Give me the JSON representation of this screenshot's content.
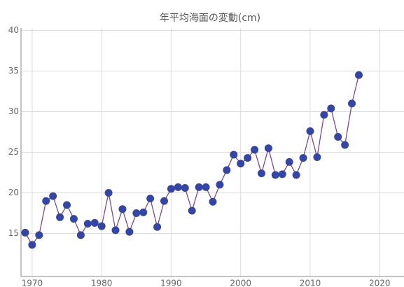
{
  "chart_data": {
    "type": "line",
    "title": "年平均海面の変動(cm)",
    "x": [
      1969,
      1970,
      1971,
      1972,
      1973,
      1974,
      1975,
      1976,
      1977,
      1978,
      1979,
      1980,
      1981,
      1982,
      1983,
      1984,
      1985,
      1986,
      1987,
      1988,
      1989,
      1990,
      1991,
      1992,
      1993,
      1994,
      1995,
      1996,
      1997,
      1998,
      1999,
      2000,
      2001,
      2002,
      2003,
      2004,
      2005,
      2006,
      2007,
      2008,
      2009,
      2010,
      2011,
      2012,
      2013,
      2014,
      2015,
      2016,
      2017
    ],
    "values": [
      15.1,
      13.6,
      14.8,
      19.0,
      19.6,
      17.0,
      18.5,
      16.8,
      14.8,
      16.2,
      16.3,
      15.9,
      20.0,
      15.4,
      18.0,
      15.2,
      17.5,
      17.6,
      19.3,
      15.8,
      19.0,
      20.5,
      20.7,
      20.6,
      17.8,
      20.7,
      20.7,
      18.9,
      21.0,
      22.8,
      24.7,
      23.6,
      24.3,
      25.3,
      22.4,
      25.5,
      22.2,
      22.3,
      23.8,
      22.2,
      24.3,
      27.6,
      24.4,
      29.6,
      30.4,
      26.9,
      25.9,
      31.0,
      34.5
    ],
    "color": "#3346a8",
    "line_color": "#7a4a8c",
    "xlim": [
      1968.4,
      2023.5
    ],
    "ylim": [
      9.7,
      40.3
    ],
    "xticks": [
      1970,
      1980,
      1990,
      2000,
      2010,
      2020
    ],
    "yticks": [
      15,
      20,
      25,
      30,
      35,
      40
    ],
    "grid": true
  }
}
